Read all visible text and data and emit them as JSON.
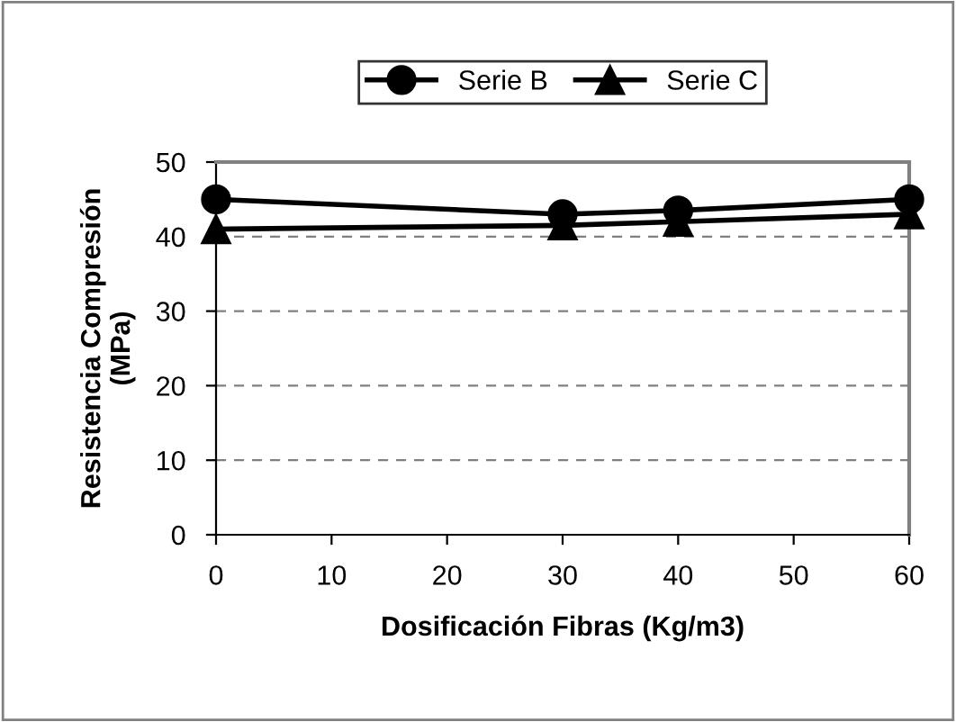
{
  "chart_data": {
    "type": "line",
    "xlabel": "Dosificación Fibras (Kg/m3)",
    "ylabel": "Resistencia Compresión\n(MPa)",
    "x": [
      0,
      30,
      40,
      60
    ],
    "series": [
      {
        "name": "Serie B",
        "color": "#000000",
        "values": [
          45,
          43,
          43.5,
          45
        ],
        "marker": "circle"
      },
      {
        "name": "Serie C",
        "color": "#000000",
        "values": [
          41,
          41.5,
          42,
          43
        ],
        "marker": "triangle"
      }
    ],
    "xlim": [
      0,
      60
    ],
    "xticks": [
      0,
      10,
      20,
      30,
      40,
      50,
      60
    ],
    "ylim": [
      0,
      50
    ],
    "yticks": [
      0,
      10,
      20,
      30,
      40,
      50
    ],
    "grid": "y",
    "legend": "top",
    "line_style": "solid"
  }
}
